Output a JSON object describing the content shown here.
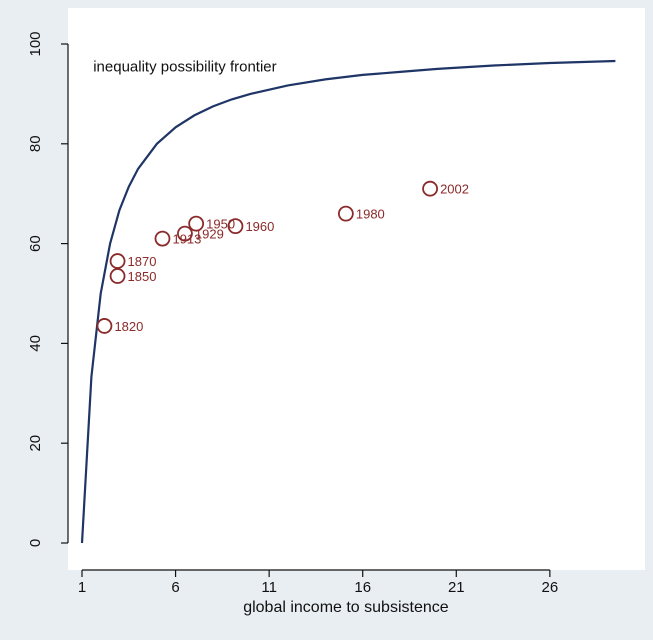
{
  "chart_data": {
    "type": "scatter",
    "title": "",
    "xlabel": "global income to subsistence",
    "ylabel": "",
    "xlim": [
      0,
      30
    ],
    "ylim": [
      -2,
      102
    ],
    "x_ticks": [
      1,
      6,
      11,
      16,
      21,
      26
    ],
    "y_ticks": [
      0,
      20,
      40,
      60,
      80,
      100
    ],
    "grid": false,
    "legend": "none",
    "colors": {
      "background": "#e9eef3",
      "plot_area": "#ffffff",
      "frontier_line": "#1f3566",
      "points": "#8b2a2a",
      "axis": "#111111"
    },
    "annotations": [
      {
        "text": "inequality possibility frontier",
        "x": 1.6,
        "y": 94.5
      }
    ],
    "series": [
      {
        "type": "line",
        "points": [
          [
            1.0,
            0.0
          ],
          [
            1.5,
            33.3
          ],
          [
            2.0,
            50.0
          ],
          [
            2.5,
            60.0
          ],
          [
            3.0,
            66.7
          ],
          [
            3.5,
            71.4
          ],
          [
            4.0,
            75.0
          ],
          [
            5.0,
            80.0
          ],
          [
            6.0,
            83.3
          ],
          [
            7.0,
            85.7
          ],
          [
            8.0,
            87.5
          ],
          [
            9.0,
            88.9
          ],
          [
            10.0,
            90.0
          ],
          [
            12.0,
            91.7
          ],
          [
            14.0,
            92.9
          ],
          [
            16.0,
            93.8
          ],
          [
            18.0,
            94.4
          ],
          [
            20.0,
            95.0
          ],
          [
            23.0,
            95.7
          ],
          [
            26.0,
            96.2
          ],
          [
            29.5,
            96.6
          ]
        ]
      },
      {
        "type": "scatter",
        "points": [
          {
            "x": 2.2,
            "y": 43.5,
            "label": "1820"
          },
          {
            "x": 2.9,
            "y": 53.5,
            "label": "1850"
          },
          {
            "x": 2.9,
            "y": 56.5,
            "label": "1870"
          },
          {
            "x": 5.3,
            "y": 61.0,
            "label": "1913"
          },
          {
            "x": 6.5,
            "y": 62.0,
            "label": "1929"
          },
          {
            "x": 7.1,
            "y": 64.0,
            "label": "1950"
          },
          {
            "x": 9.2,
            "y": 63.5,
            "label": "1960"
          },
          {
            "x": 15.1,
            "y": 66.0,
            "label": "1980"
          },
          {
            "x": 19.6,
            "y": 71.0,
            "label": "2002"
          }
        ]
      }
    ]
  }
}
